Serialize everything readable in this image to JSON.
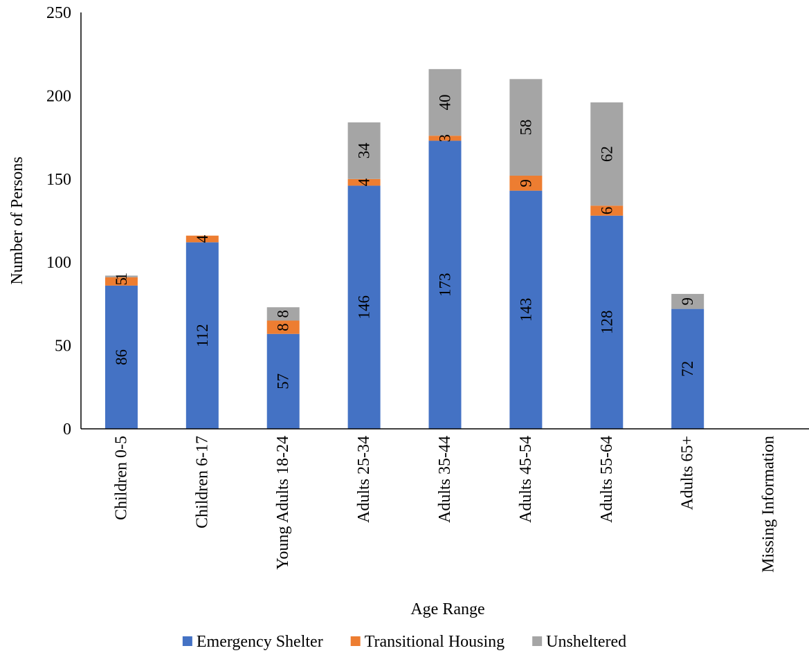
{
  "chart_data": {
    "type": "bar",
    "stacked": true,
    "orientation": "vertical",
    "title": "",
    "xlabel": "Age Range",
    "ylabel": "Number of Persons",
    "ylim": [
      0,
      250
    ],
    "yticks": [
      0,
      50,
      100,
      150,
      200,
      250
    ],
    "grid": false,
    "legend_position": "bottom",
    "categories": [
      "Children 0-5",
      "Children 6-17",
      "Young Adults 18-24",
      "Adults 25-34",
      "Adults 35-44",
      "Adults 45-54",
      "Adults 55-64",
      "Adults 65+",
      "Missing Information"
    ],
    "series": [
      {
        "name": "Emergency Shelter",
        "color": "#4472C4",
        "values": [
          86,
          112,
          57,
          146,
          173,
          143,
          128,
          72,
          0
        ]
      },
      {
        "name": "Transitional Housing",
        "color": "#ED7D31",
        "values": [
          5,
          4,
          8,
          4,
          3,
          9,
          6,
          0,
          0
        ]
      },
      {
        "name": "Unsheltered",
        "color": "#A5A5A5",
        "values": [
          1,
          0,
          8,
          34,
          40,
          58,
          62,
          9,
          0
        ]
      }
    ]
  }
}
